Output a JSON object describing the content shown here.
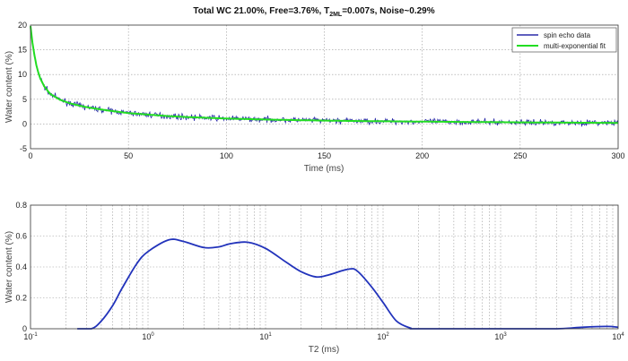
{
  "chart_data": [
    {
      "type": "line",
      "title": "Total WC 21.00%, Free=3.76%, T2ML=0.007s, Noise~0.29%",
      "title_parts": {
        "pre": "Total WC 21.00%, Free=3.76%, T",
        "sub": "2ML",
        "post": "=0.007s, Noise~0.29%"
      },
      "xlabel": "Time (ms)",
      "ylabel": "Water content (%)",
      "xlim": [
        0,
        300
      ],
      "ylim": [
        -5,
        20
      ],
      "xticks": [
        0,
        50,
        100,
        150,
        200,
        250,
        300
      ],
      "yticks": [
        -5,
        0,
        5,
        10,
        15,
        20
      ],
      "grid": true,
      "legend_position": "top-right",
      "noise_sd": 0.29,
      "series": [
        {
          "name": "spin echo data",
          "color": "#2a2aa8",
          "style": "noisy"
        },
        {
          "name": "multi-exponential fit",
          "color": "#22dd22",
          "x": [
            0,
            1,
            2,
            3,
            4,
            5,
            7,
            10,
            15,
            20,
            25,
            30,
            40,
            50,
            60,
            70,
            80,
            90,
            100,
            120,
            140,
            160,
            180,
            200,
            225,
            250,
            275,
            300
          ],
          "y": [
            19.8,
            16.4,
            13.9,
            11.9,
            10.4,
            9.2,
            7.6,
            6.1,
            4.9,
            4.2,
            3.7,
            3.3,
            2.7,
            2.2,
            1.9,
            1.6,
            1.4,
            1.25,
            1.1,
            0.9,
            0.75,
            0.63,
            0.55,
            0.48,
            0.4,
            0.33,
            0.27,
            0.22
          ]
        }
      ]
    },
    {
      "type": "line",
      "title": "",
      "xlabel": "T2 (ms)",
      "ylabel": "Water content (%)",
      "xscale": "log",
      "xlim": [
        0.1,
        10000
      ],
      "ylim": [
        0,
        0.8
      ],
      "xticks": [
        {
          "base": "10",
          "exp": "-1"
        },
        {
          "base": "10",
          "exp": "0"
        },
        {
          "base": "10",
          "exp": "1"
        },
        {
          "base": "10",
          "exp": "2"
        },
        {
          "base": "10",
          "exp": "3"
        },
        {
          "base": "10",
          "exp": "4"
        }
      ],
      "yticks": [
        "0",
        "0.2",
        "0.4",
        "0.6",
        "0.8"
      ],
      "grid": true,
      "series": [
        {
          "name": "T2 distribution",
          "color": "#2233bb",
          "x": [
            0.25,
            0.33,
            0.4,
            0.5,
            0.6,
            0.8,
            1,
            1.5,
            2,
            3,
            4,
            5,
            7,
            10,
            15,
            20,
            27,
            35,
            50,
            60,
            80,
            100,
            130,
            170,
            200,
            1000,
            3000,
            5000,
            8000,
            10000
          ],
          "y": [
            0,
            0,
            0.05,
            0.15,
            0.26,
            0.42,
            0.5,
            0.575,
            0.565,
            0.525,
            0.53,
            0.55,
            0.56,
            0.52,
            0.43,
            0.37,
            0.335,
            0.35,
            0.385,
            0.375,
            0.27,
            0.17,
            0.05,
            0.005,
            0,
            0,
            0,
            0.01,
            0.015,
            0.01
          ]
        }
      ]
    }
  ]
}
